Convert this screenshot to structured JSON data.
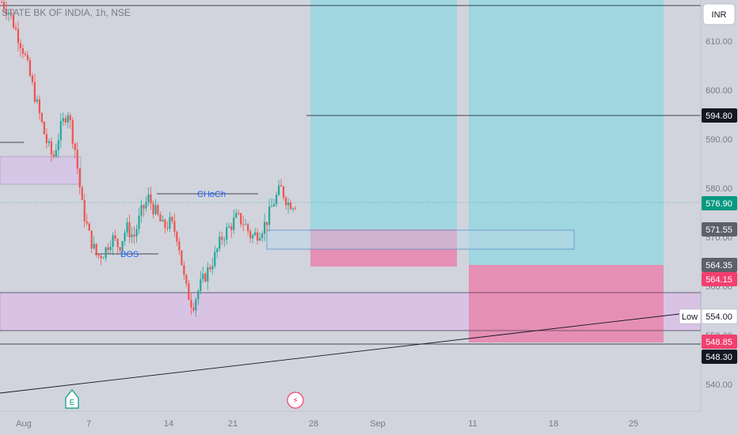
{
  "header": {
    "symbol_text": "STATE BK OF INDIA, 1h, NSE"
  },
  "currency_button": {
    "label": "INR"
  },
  "colors": {
    "background": "#d1d4dc",
    "up": "#26a69a",
    "down": "#ef5350",
    "target_zone": "#a0d6df",
    "stop_zone": "#e58fb4",
    "demand_zone": "#d9c3e4",
    "supply_zone": "#d6c6e6",
    "last_price": "#089981",
    "stop_tag": "#f23f6e",
    "dark_tag": "#131722",
    "grey_tag": "#5d606b",
    "annotation": "#2962ff"
  },
  "chart_data": {
    "type": "candlestick",
    "title": "STATE BK OF INDIA, 1h, NSE",
    "xlabel": "",
    "ylabel": "",
    "y_ticks": [
      540.0,
      550.0,
      560.0,
      570.0,
      580.0,
      590.0,
      600.0,
      610.0
    ],
    "x_ticks": [
      "Aug",
      "7",
      "14",
      "21",
      "28",
      "Sep",
      "11",
      "18",
      "25"
    ],
    "price_tags": [
      {
        "value": "594.80",
        "kind": "dark"
      },
      {
        "value": "576.90",
        "kind": "last"
      },
      {
        "value": "571.55",
        "kind": "grey"
      },
      {
        "value": "564.35",
        "kind": "grey"
      },
      {
        "value": "564.15",
        "kind": "stop"
      },
      {
        "value": "554.00",
        "kind": "white",
        "label": "Low"
      },
      {
        "value": "548.85",
        "kind": "stop"
      },
      {
        "value": "548.30",
        "kind": "dark"
      }
    ],
    "annotations": [
      "CHoCh",
      "BOS"
    ],
    "event_markers": [
      "E",
      "⚡"
    ],
    "candles_note": "approximate hourly OHLC path, Aug–Aug 25",
    "close_path": [
      618,
      616,
      612,
      608,
      602,
      596,
      590,
      586,
      592,
      596,
      588,
      576,
      570,
      566,
      567,
      570,
      568,
      572,
      570,
      575,
      578,
      575,
      572,
      573,
      570,
      560,
      556,
      560,
      563,
      566,
      570,
      572,
      574,
      573,
      570,
      571,
      573,
      577,
      580,
      577,
      576.9
    ],
    "positions": [
      {
        "entry": 571.55,
        "target": 620,
        "stop": 564.35
      },
      {
        "entry": 564.35,
        "target": 620,
        "stop": 548.85
      }
    ],
    "zones": [
      {
        "top": 586.6,
        "bottom": 581.2
      },
      {
        "top": 558.8,
        "bottom": 551.2
      },
      {
        "top": 571.7,
        "bottom": 567.9
      }
    ]
  }
}
